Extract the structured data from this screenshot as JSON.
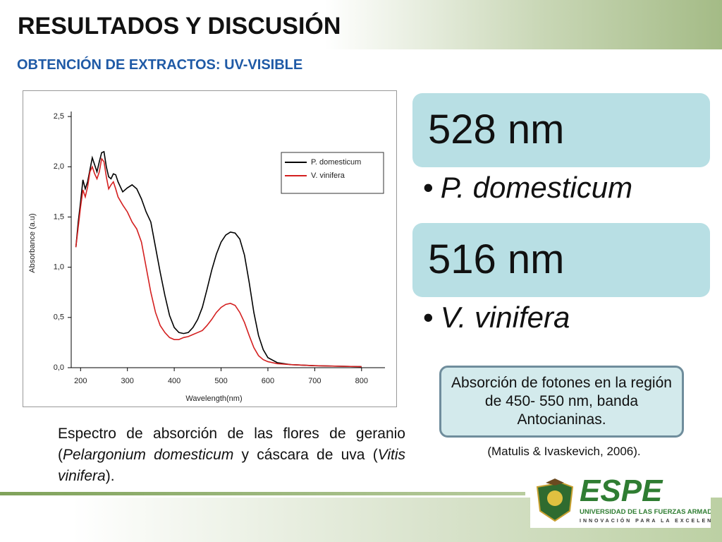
{
  "header": {
    "title": "RESULTADOS Y DISCUSIÓN",
    "subtitle": "OBTENCIÓN DE EXTRACTOS: UV-VISIBLE"
  },
  "chart_data": {
    "type": "line",
    "x_label": "Wavelength(nm)",
    "y_label": "Absorbance (a.u)",
    "x": [
      190,
      195,
      200,
      205,
      210,
      215,
      220,
      225,
      230,
      235,
      240,
      245,
      250,
      255,
      260,
      265,
      270,
      275,
      280,
      290,
      300,
      310,
      320,
      330,
      340,
      350,
      360,
      370,
      380,
      390,
      400,
      410,
      420,
      430,
      440,
      450,
      460,
      470,
      480,
      490,
      500,
      510,
      520,
      530,
      540,
      550,
      560,
      570,
      580,
      590,
      600,
      620,
      650,
      700,
      800
    ],
    "series": [
      {
        "name": "P. domesticum",
        "color": "#000000",
        "values": [
          1.2,
          1.45,
          1.65,
          1.87,
          1.78,
          1.85,
          1.97,
          2.09,
          2.02,
          1.95,
          2.05,
          2.14,
          2.15,
          2.0,
          1.9,
          1.88,
          1.93,
          1.92,
          1.85,
          1.75,
          1.79,
          1.82,
          1.78,
          1.68,
          1.55,
          1.45,
          1.2,
          0.95,
          0.72,
          0.52,
          0.4,
          0.35,
          0.34,
          0.35,
          0.4,
          0.48,
          0.6,
          0.78,
          0.97,
          1.13,
          1.25,
          1.32,
          1.35,
          1.34,
          1.28,
          1.12,
          0.85,
          0.55,
          0.32,
          0.18,
          0.1,
          0.05,
          0.03,
          0.02,
          0.01
        ]
      },
      {
        "name": "V. vinifera",
        "color": "#d42020",
        "values": [
          1.2,
          1.4,
          1.6,
          1.77,
          1.7,
          1.8,
          1.95,
          2.0,
          1.93,
          1.88,
          1.95,
          2.08,
          2.05,
          1.9,
          1.78,
          1.82,
          1.85,
          1.78,
          1.7,
          1.62,
          1.55,
          1.45,
          1.38,
          1.25,
          1.0,
          0.75,
          0.55,
          0.42,
          0.35,
          0.3,
          0.28,
          0.28,
          0.3,
          0.31,
          0.33,
          0.35,
          0.37,
          0.42,
          0.48,
          0.55,
          0.6,
          0.63,
          0.64,
          0.62,
          0.55,
          0.45,
          0.32,
          0.2,
          0.12,
          0.08,
          0.06,
          0.04,
          0.03,
          0.02,
          0.01
        ]
      }
    ],
    "xlim": [
      180,
      850
    ],
    "ylim": [
      0,
      2.55
    ],
    "xticks": [
      200,
      300,
      400,
      500,
      600,
      700,
      800
    ],
    "yticks": [
      {
        "value": 0,
        "label": "0,0"
      },
      {
        "value": 0.5,
        "label": "0,5"
      },
      {
        "value": 1,
        "label": "1,0"
      },
      {
        "value": 1.5,
        "label": "1,5"
      },
      {
        "value": 2,
        "label": "2,0"
      },
      {
        "value": 2.5,
        "label": "2,5"
      }
    ],
    "legend": "upper right"
  },
  "peaks": [
    {
      "wavelength": "528 nm",
      "species": "P. domesticum"
    },
    {
      "wavelength": "516 nm",
      "species": "V. vinifera"
    }
  ],
  "note": "Absorción de fotones en la región de 450- 550 nm, banda Antocianinas.",
  "citation": "(Matulis & Ivaskevich, 2006).",
  "caption": [
    "Espectro de absorción de las flores de geranio (",
    "Pelargonium domesticum",
    " y cáscara de uva (",
    "Vitis vinifera",
    ")."
  ],
  "logo": {
    "name": "ESPE",
    "line1": "UNIVERSIDAD DE LAS FUERZAS ARMADAS",
    "line2": "INNOVACIÓN PARA LA EXCELENCIA"
  }
}
